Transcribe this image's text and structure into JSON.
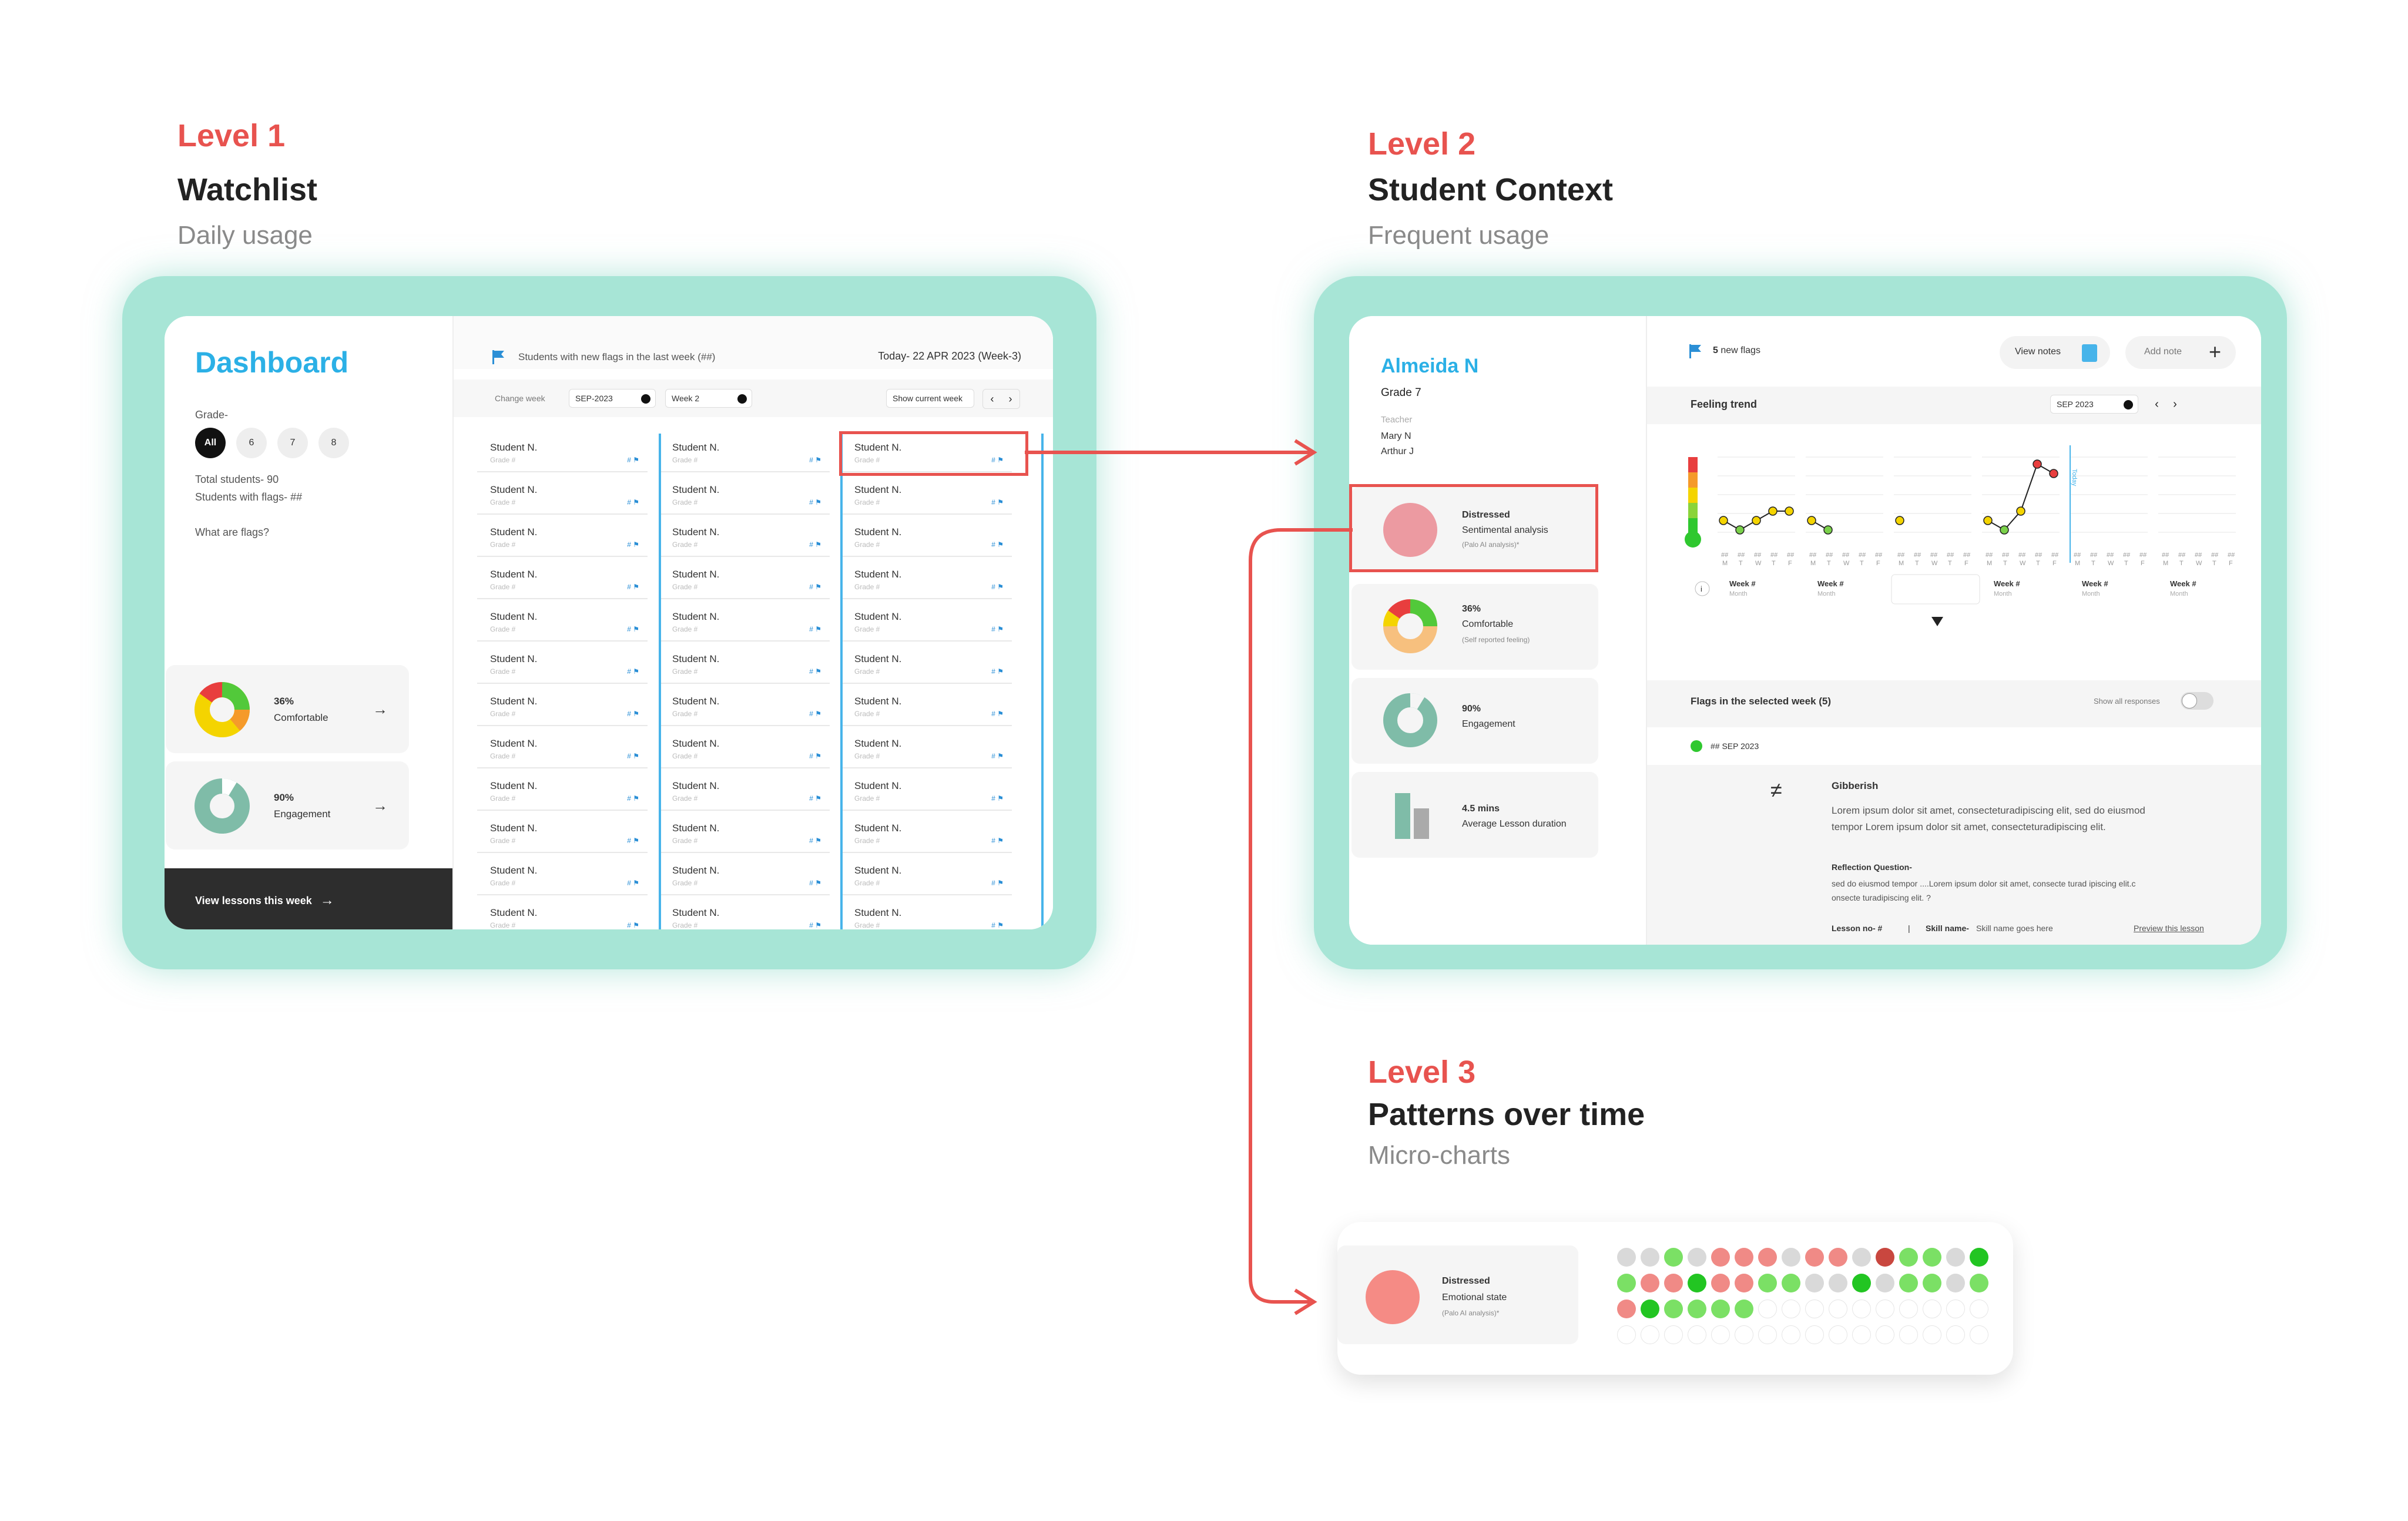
{
  "levels": [
    {
      "tag": "Level 1",
      "title": "Watchlist",
      "sub": "Daily usage"
    },
    {
      "tag": "Level 2",
      "title": "Student Context",
      "sub": "Frequent usage"
    },
    {
      "tag": "Level 3",
      "title": "Patterns over time",
      "sub": "Micro-charts"
    }
  ],
  "colors": {
    "accent_red": "#e8534f",
    "frame_teal": "#a7e5d6",
    "brand_blue": "#2bb0e6",
    "flag_blue": "#2b8fd6"
  },
  "l1": {
    "title": "Dashboard",
    "grade_label": "Grade-",
    "grades": [
      "All",
      "6",
      "7",
      "8"
    ],
    "total": "Total students- 90",
    "with_flags": "Students with flags- ##",
    "what_flags": "What are flags?",
    "card1": {
      "pct": "36%",
      "label": "Comfortable"
    },
    "card2": {
      "pct": "90%",
      "label": "Engagement"
    },
    "bottom": "View lessons this week",
    "header": "Students with new flags in the last week (##)",
    "today": "Today- 22 APR 2023 (Week-3)",
    "change_week": "Change week",
    "month_select": "SEP-2023",
    "week_select": "Week 2",
    "show_current": "Show current week",
    "student_name": "Student N.",
    "grade_text": "Grade #",
    "flag_text": "#"
  },
  "l2": {
    "name": "Almeida N",
    "grade": "Grade 7",
    "teacher_label": "Teacher",
    "teachers": [
      "Mary N",
      "Arthur J"
    ],
    "card1": {
      "title": "Distressed",
      "sub": "Sentimental analysis",
      "note": "(Palo AI analysis)*"
    },
    "card2": {
      "pct": "36%",
      "label": "Comfortable",
      "note": "(Self reported feeling)"
    },
    "card3": {
      "pct": "90%",
      "label": "Engagement"
    },
    "card4": {
      "val": "4.5 mins",
      "label": "Average Lesson duration"
    },
    "flags_count": "5",
    "flags_text": "new flags",
    "view_notes": "View notes",
    "add_note": "Add note",
    "trend_title": "Feeling trend",
    "trend_month": "SEP 2023",
    "today_label": "Today",
    "week_label": "Week #",
    "month_label": "Month",
    "days": [
      "M",
      "T",
      "W",
      "T",
      "F"
    ],
    "date_ph": "##",
    "info": "i",
    "flags_week": "Flags in the selected week (5)",
    "show_all": "Show all responses",
    "flag_date": "## SEP 2023",
    "resp_title": "Gibberish",
    "resp_body1": "Lorem ipsum dolor sit amet, consecteturadipiscing elit, sed do eiusmod",
    "resp_body2": "tempor Lorem ipsum dolor sit amet, consecteturadipiscing elit.",
    "reflect_title": "Reflection Question-",
    "reflect_body1": "sed do eiusmod tempor ....Lorem ipsum dolor sit amet, consecte turad ipiscing elit.c",
    "reflect_body2": "onsecte turadipiscing elit. ?",
    "lesson_no": "Lesson no- #",
    "sep": "|",
    "skill_label": "Skill name-",
    "skill_value": "Skill name goes here",
    "preview": "Preview this lesson"
  },
  "l3": {
    "title": "Distressed",
    "sub": "Emotional state",
    "note": "(Palo AI analysis)*",
    "dots": [
      [
        "g",
        "g",
        "lg",
        "g",
        "pk",
        "pk",
        "pk",
        "g",
        "pk",
        "pk",
        "g",
        "rd",
        "lg",
        "lg",
        "g",
        "gg"
      ],
      [
        "lg",
        "pk",
        "pk",
        "gg",
        "pk",
        "pk",
        "lg",
        "lg",
        "g",
        "g",
        "gg",
        "g",
        "lg",
        "lg",
        "g",
        "lg"
      ],
      [
        "pk",
        "gg",
        "lg",
        "lg",
        "lg",
        "lg",
        "e",
        "e",
        "e",
        "e",
        "e",
        "e",
        "e",
        "e",
        "e",
        "e"
      ],
      [
        "e",
        "e",
        "e",
        "e",
        "e",
        "e",
        "e",
        "e",
        "e",
        "e",
        "e",
        "e",
        "e",
        "e",
        "e",
        "e"
      ]
    ]
  },
  "chart_data": {
    "type": "line",
    "title": "Feeling trend",
    "x_groups": [
      "Week #",
      "Week #",
      "Week #",
      "Week #",
      "Week #",
      "Week #"
    ],
    "x_days": [
      "M",
      "T",
      "W",
      "T",
      "F"
    ],
    "series": [
      {
        "values": [
          [
            2,
            1,
            2,
            3,
            3
          ],
          [
            2,
            1,
            null,
            null,
            null
          ],
          [
            2,
            null,
            null,
            null,
            null
          ],
          [
            2,
            1,
            3,
            8,
            7
          ],
          [
            null,
            null,
            null,
            null,
            null
          ],
          [
            null,
            null,
            null,
            null,
            null
          ]
        ]
      }
    ]
  }
}
